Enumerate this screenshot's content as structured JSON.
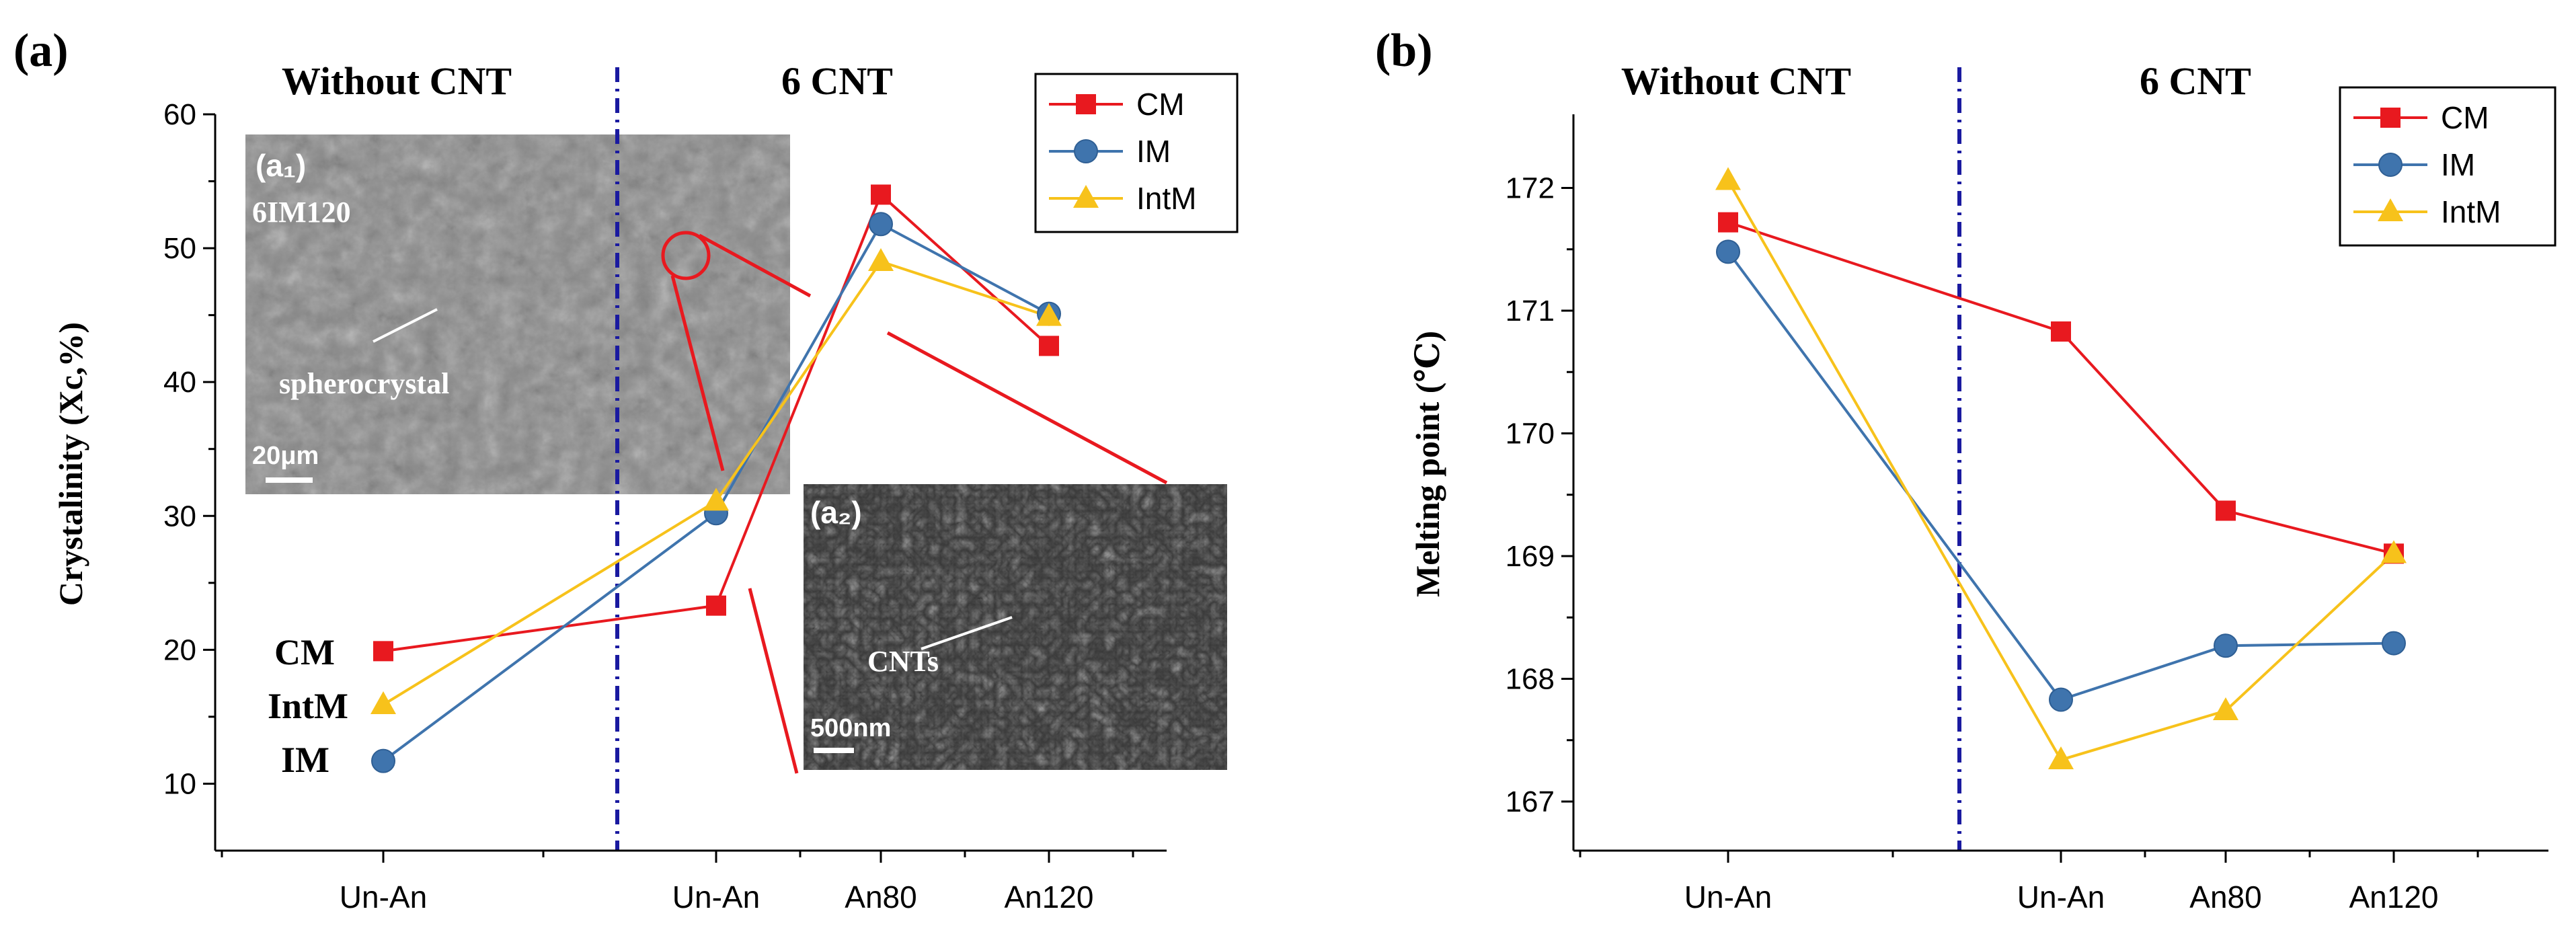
{
  "chart_data": [
    {
      "type": "line",
      "panel_label": "(a)",
      "ylabel": "Crystalinity (Xc,%)",
      "ylim": [
        5,
        60
      ],
      "yticks": [
        10,
        20,
        30,
        40,
        50,
        60
      ],
      "categories": [
        "Un-An",
        "Un-An",
        "An80",
        "An120"
      ],
      "group_labels": [
        "Without CNT",
        "6 CNT"
      ],
      "series": [
        {
          "name": "CM",
          "color": "#e8191f",
          "marker": "square",
          "values": [
            19.9,
            23.3,
            54.0,
            42.7
          ]
        },
        {
          "name": "IM",
          "color": "#3f74ad",
          "marker": "circle",
          "values": [
            11.7,
            30.2,
            51.8,
            45.1
          ]
        },
        {
          "name": "IntM",
          "color": "#f7c21b",
          "marker": "triangle",
          "values": [
            15.9,
            31.1,
            49.0,
            44.9
          ]
        }
      ],
      "side_labels": [
        "CM",
        "IntM",
        "IM"
      ],
      "legend_position": "top-right",
      "insets": [
        {
          "label": "(a₁)",
          "sample": "6IM120",
          "annotation": "spherocrystal",
          "scale": "20μm"
        },
        {
          "label": "(a₂)",
          "annotation": "CNTs",
          "scale": "500nm"
        }
      ]
    },
    {
      "type": "line",
      "panel_label": "(b)",
      "ylabel": "Melting point (℃)",
      "ylim": [
        166.6,
        172.6
      ],
      "yticks": [
        167,
        168,
        169,
        170,
        171,
        172
      ],
      "categories": [
        "Un-An",
        "Un-An",
        "An80",
        "An120"
      ],
      "group_labels": [
        "Without CNT",
        "6 CNT"
      ],
      "series": [
        {
          "name": "CM",
          "color": "#e8191f",
          "marker": "square",
          "values": [
            171.72,
            170.83,
            169.37,
            169.02
          ]
        },
        {
          "name": "IM",
          "color": "#3f74ad",
          "marker": "circle",
          "values": [
            171.48,
            167.83,
            168.27,
            168.29
          ]
        },
        {
          "name": "IntM",
          "color": "#f7c21b",
          "marker": "triangle",
          "values": [
            172.06,
            167.34,
            167.74,
            169.02
          ]
        }
      ],
      "legend_position": "top-right"
    }
  ]
}
